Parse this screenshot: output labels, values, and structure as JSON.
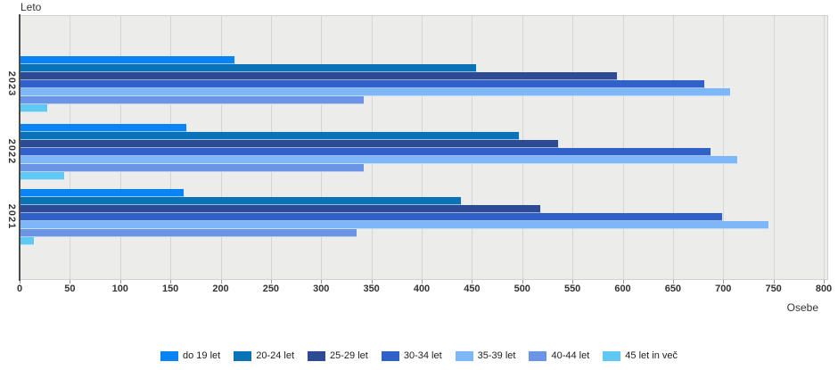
{
  "chart": {
    "y_axis_title": "Leto",
    "x_axis_title": "Osebe"
  },
  "chart_data": {
    "type": "bar",
    "orientation": "horizontal",
    "title": "",
    "xlabel": "Osebe",
    "ylabel": "Leto",
    "categories": [
      "2023",
      "2022",
      "2021"
    ],
    "series": [
      {
        "name": "do 19 let",
        "color": "#0a83f5",
        "values": [
          215,
          167,
          164
        ]
      },
      {
        "name": "20-24 let",
        "color": "#0a73b8",
        "values": [
          455,
          498,
          440
        ]
      },
      {
        "name": "25-29 let",
        "color": "#2c4b94",
        "values": [
          595,
          537,
          519
        ]
      },
      {
        "name": "30-34 let",
        "color": "#3061c9",
        "values": [
          682,
          688,
          700
        ]
      },
      {
        "name": "35-39 let",
        "color": "#7db7f8",
        "values": [
          708,
          715,
          746
        ]
      },
      {
        "name": "40-44 let",
        "color": "#6a95e6",
        "values": [
          343,
          343,
          336
        ]
      },
      {
        "name": "45 let in več",
        "color": "#5fc8f3",
        "values": [
          28,
          45,
          15
        ]
      }
    ],
    "xlim": [
      0,
      800
    ],
    "x_tick_step": 50,
    "grid": true,
    "legend_position": "bottom",
    "plot_background": "#ececeb",
    "gridline_color": "#d5d5d5"
  }
}
